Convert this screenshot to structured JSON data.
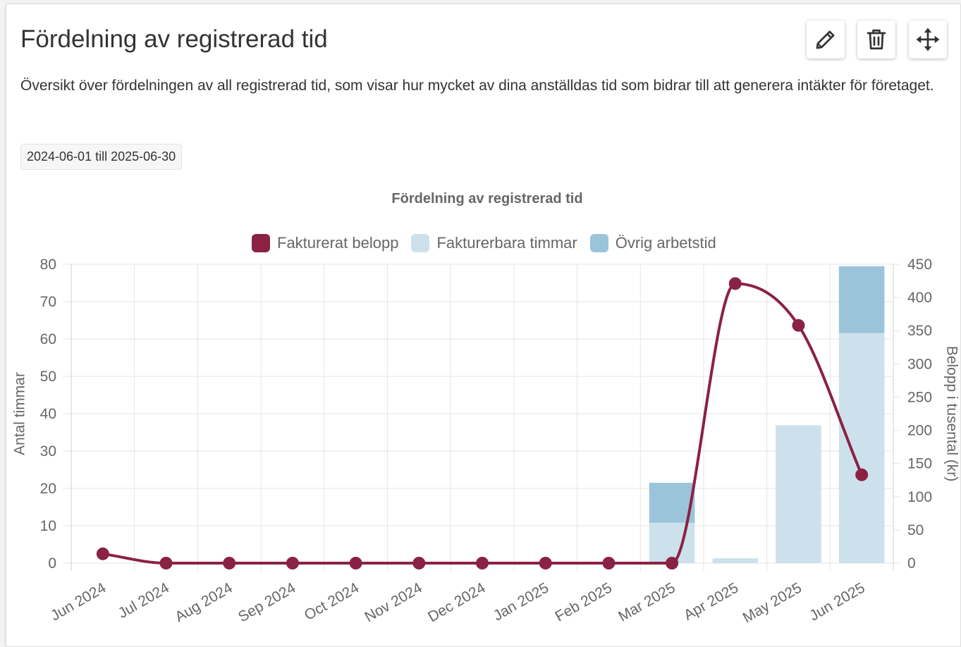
{
  "card": {
    "title": "Fördelning av registrerad tid",
    "description": "Översikt över fördelningen av all registrerad tid, som visar hur mycket av dina anställdas tid som bidrar till att generera intäkter för företaget.",
    "date_range": "2024-06-01 till 2025-06-30",
    "actions": [
      {
        "icon": "pencil-icon"
      },
      {
        "icon": "trash-icon"
      },
      {
        "icon": "move-icon"
      }
    ]
  },
  "colors": {
    "text": "#333333",
    "muted_text": "#666666",
    "grid": "#e4e4e4"
  },
  "chart_data": {
    "type": "bar",
    "title": "Fördelning av registrerad tid",
    "categories": [
      "Jun 2024",
      "Jul 2024",
      "Aug 2024",
      "Sep 2024",
      "Oct 2024",
      "Nov 2024",
      "Dec 2024",
      "Jan 2025",
      "Feb 2025",
      "Mar 2025",
      "Apr 2025",
      "May 2025",
      "Jun 2025"
    ],
    "series": [
      {
        "name": "Fakturerat belopp",
        "type": "line",
        "axis": "right",
        "color": "#8a2243",
        "values": [
          14,
          0,
          0,
          0,
          0,
          0,
          0,
          0,
          0,
          0,
          421,
          358,
          133
        ]
      },
      {
        "name": "Fakturerbara timmar",
        "type": "bar",
        "stacked": true,
        "axis": "left",
        "color": "#cde1ec",
        "values": [
          0,
          0,
          0,
          0,
          0,
          0,
          0,
          0,
          0,
          10.8,
          1.3,
          36.9,
          61.6
        ]
      },
      {
        "name": "Övrig arbetstid",
        "type": "bar",
        "stacked": true,
        "axis": "left",
        "color": "#9bc4da",
        "values": [
          0,
          0,
          0,
          0,
          0,
          0,
          0,
          0,
          0,
          10.7,
          0,
          0,
          17.9
        ]
      }
    ],
    "ylabel": "Antal timmar",
    "y2label": "Belopp i tusental (kr)",
    "ylim": [
      0,
      80
    ],
    "y2lim": [
      0,
      450
    ],
    "yticks": [
      "0",
      "10",
      "20",
      "30",
      "40",
      "50",
      "60",
      "70",
      "80"
    ],
    "y2ticks": [
      "0",
      "50",
      "100",
      "150",
      "200",
      "250",
      "300",
      "350",
      "400",
      "450"
    ],
    "grid": true,
    "legend_position": "top"
  }
}
